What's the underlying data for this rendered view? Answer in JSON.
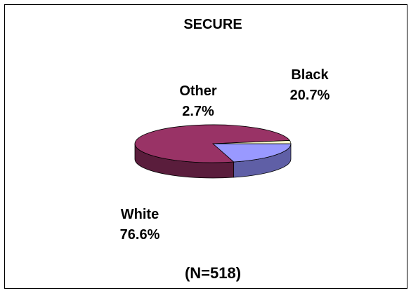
{
  "chart_data": {
    "type": "pie",
    "title": "SECURE",
    "categories": [
      "Black",
      "White",
      "Other"
    ],
    "values": [
      20.7,
      76.6,
      2.7
    ],
    "value_labels": [
      "20.7%",
      "76.6%",
      "2.7%"
    ],
    "colors": [
      "#9999FF",
      "#993366",
      "#FFFFCC"
    ],
    "side_colors": [
      "#5f5fa6",
      "#5a1d3c",
      "#b7b78f"
    ],
    "footnote": "(N=518)",
    "legend": "none",
    "style": "3d"
  }
}
